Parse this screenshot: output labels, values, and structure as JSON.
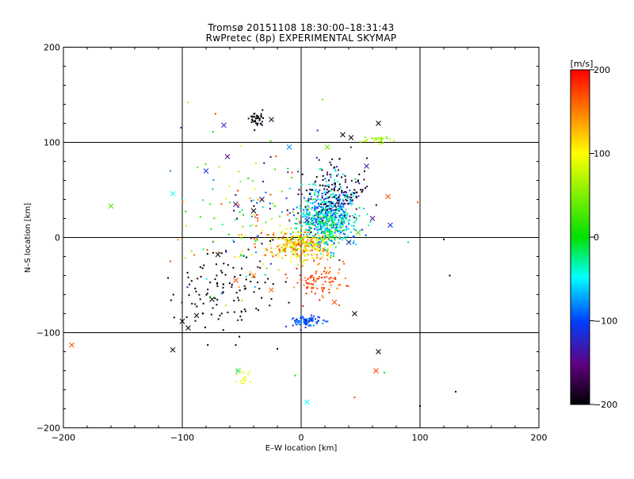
{
  "chart_data": {
    "type": "scatter",
    "title": "Tromsø 20151108 18:30:00–18:31:43",
    "subtitle": "RwPretec (8p) EXPERIMENTAL SKYMAP",
    "xlabel": "E–W location [km]",
    "ylabel": "N–S location [km]",
    "xlim": [
      -200,
      200
    ],
    "ylim": [
      -200,
      200
    ],
    "xticks": [
      "−200",
      "−100",
      "0",
      "100",
      "200"
    ],
    "yticks": [
      "−200",
      "−100",
      "0",
      "100",
      "200"
    ],
    "grid_lines": [
      -100,
      0,
      100
    ],
    "grid": true,
    "colorbar": {
      "label": "[m/s]",
      "min": -200,
      "max": 200,
      "ticks": [
        "200",
        "100",
        "0",
        "−100",
        "−200"
      ],
      "tick_values": [
        200,
        100,
        0,
        -100,
        -200
      ]
    },
    "clusters": [
      {
        "cx": 25,
        "cy": 28,
        "sx": 12,
        "sy": 16,
        "n": 420,
        "vmin": -120,
        "vmax": -20
      },
      {
        "cx": 18,
        "cy": 12,
        "sx": 10,
        "sy": 12,
        "n": 260,
        "vmin": -100,
        "vmax": 20
      },
      {
        "cx": 0,
        "cy": -8,
        "sx": 14,
        "sy": 8,
        "n": 300,
        "vmin": 60,
        "vmax": 180
      },
      {
        "cx": 30,
        "cy": 50,
        "sx": 14,
        "sy": 14,
        "n": 120,
        "vmin": -220,
        "vmax": -160
      },
      {
        "cx": 15,
        "cy": -48,
        "sx": 12,
        "sy": 9,
        "n": 90,
        "vmin": 140,
        "vmax": 200
      },
      {
        "cx": 5,
        "cy": -88,
        "sx": 6,
        "sy": 3,
        "n": 90,
        "vmin": -130,
        "vmax": -70
      },
      {
        "cx": -65,
        "cy": -55,
        "sx": 22,
        "sy": 20,
        "n": 110,
        "vmin": -220,
        "vmax": -180
      },
      {
        "cx": -38,
        "cy": 124,
        "sx": 3,
        "sy": 4,
        "n": 35,
        "vmin": -220,
        "vmax": -180
      },
      {
        "cx": 65,
        "cy": 103,
        "sx": 6,
        "sy": 2,
        "n": 30,
        "vmin": 40,
        "vmax": 90
      },
      {
        "cx": -40,
        "cy": 15,
        "sx": 30,
        "sy": 35,
        "n": 160,
        "vmin": -200,
        "vmax": 200
      },
      {
        "cx": -50,
        "cy": -145,
        "sx": 4,
        "sy": 4,
        "n": 15,
        "vmin": 80,
        "vmax": 120
      }
    ],
    "markers": [
      {
        "x": -193,
        "y": -113,
        "v": 170
      },
      {
        "x": -108,
        "y": -118,
        "v": -190
      },
      {
        "x": -160,
        "y": 33,
        "v": 30
      },
      {
        "x": -108,
        "y": 46,
        "v": -50
      },
      {
        "x": -80,
        "y": 70,
        "v": -110
      },
      {
        "x": -65,
        "y": 118,
        "v": -120
      },
      {
        "x": -62,
        "y": 85,
        "v": -150
      },
      {
        "x": -25,
        "y": 124,
        "v": -200
      },
      {
        "x": -10,
        "y": 95,
        "v": -80
      },
      {
        "x": 35,
        "y": 108,
        "v": -200
      },
      {
        "x": 42,
        "y": 105,
        "v": -190
      },
      {
        "x": 55,
        "y": 75,
        "v": -130
      },
      {
        "x": 65,
        "y": 120,
        "v": -200
      },
      {
        "x": -100,
        "y": -88,
        "v": -200
      },
      {
        "x": -95,
        "y": -95,
        "v": -200
      },
      {
        "x": -88,
        "y": -82,
        "v": -190
      },
      {
        "x": -75,
        "y": -65,
        "v": -200
      },
      {
        "x": -70,
        "y": -18,
        "v": -195
      },
      {
        "x": -55,
        "y": -45,
        "v": 170
      },
      {
        "x": -40,
        "y": -40,
        "v": 150
      },
      {
        "x": -25,
        "y": -55,
        "v": 160
      },
      {
        "x": 28,
        "y": -68,
        "v": 170
      },
      {
        "x": 45,
        "y": -80,
        "v": -200
      },
      {
        "x": 65,
        "y": -120,
        "v": -200
      },
      {
        "x": 63,
        "y": -140,
        "v": 180
      },
      {
        "x": 5,
        "y": -173,
        "v": -50
      },
      {
        "x": -53,
        "y": -140,
        "v": -20
      },
      {
        "x": 73,
        "y": 43,
        "v": 170
      },
      {
        "x": 75,
        "y": 13,
        "v": -110
      },
      {
        "x": 60,
        "y": 20,
        "v": -140
      },
      {
        "x": 22,
        "y": 95,
        "v": 40
      },
      {
        "x": -55,
        "y": 35,
        "v": -160
      },
      {
        "x": -40,
        "y": 28,
        "v": -200
      },
      {
        "x": -33,
        "y": 40,
        "v": -190
      },
      {
        "x": 5,
        "y": 18,
        "v": -120
      },
      {
        "x": 40,
        "y": -5,
        "v": -120
      },
      {
        "x": 48,
        "y": 5,
        "v": 30
      }
    ],
    "sparse": [
      {
        "x": -110,
        "y": 70,
        "v": -80
      },
      {
        "x": -95,
        "y": 142,
        "v": 120
      },
      {
        "x": -72,
        "y": 130,
        "v": 180
      },
      {
        "x": 18,
        "y": 145,
        "v": 40
      },
      {
        "x": 120,
        "y": -2,
        "v": -200
      },
      {
        "x": 125,
        "y": -40,
        "v": -200
      },
      {
        "x": 130,
        "y": -162,
        "v": -200
      },
      {
        "x": 100,
        "y": -177,
        "v": -200
      },
      {
        "x": 45,
        "y": -168,
        "v": 180
      },
      {
        "x": 70,
        "y": -142,
        "v": 0
      },
      {
        "x": -55,
        "y": -113,
        "v": -200
      },
      {
        "x": -20,
        "y": -117,
        "v": -200
      },
      {
        "x": -5,
        "y": -145,
        "v": 0
      },
      {
        "x": -110,
        "y": -25,
        "v": 170
      },
      {
        "x": 90,
        "y": -5,
        "v": -20
      },
      {
        "x": 98,
        "y": 37,
        "v": 170
      }
    ]
  }
}
